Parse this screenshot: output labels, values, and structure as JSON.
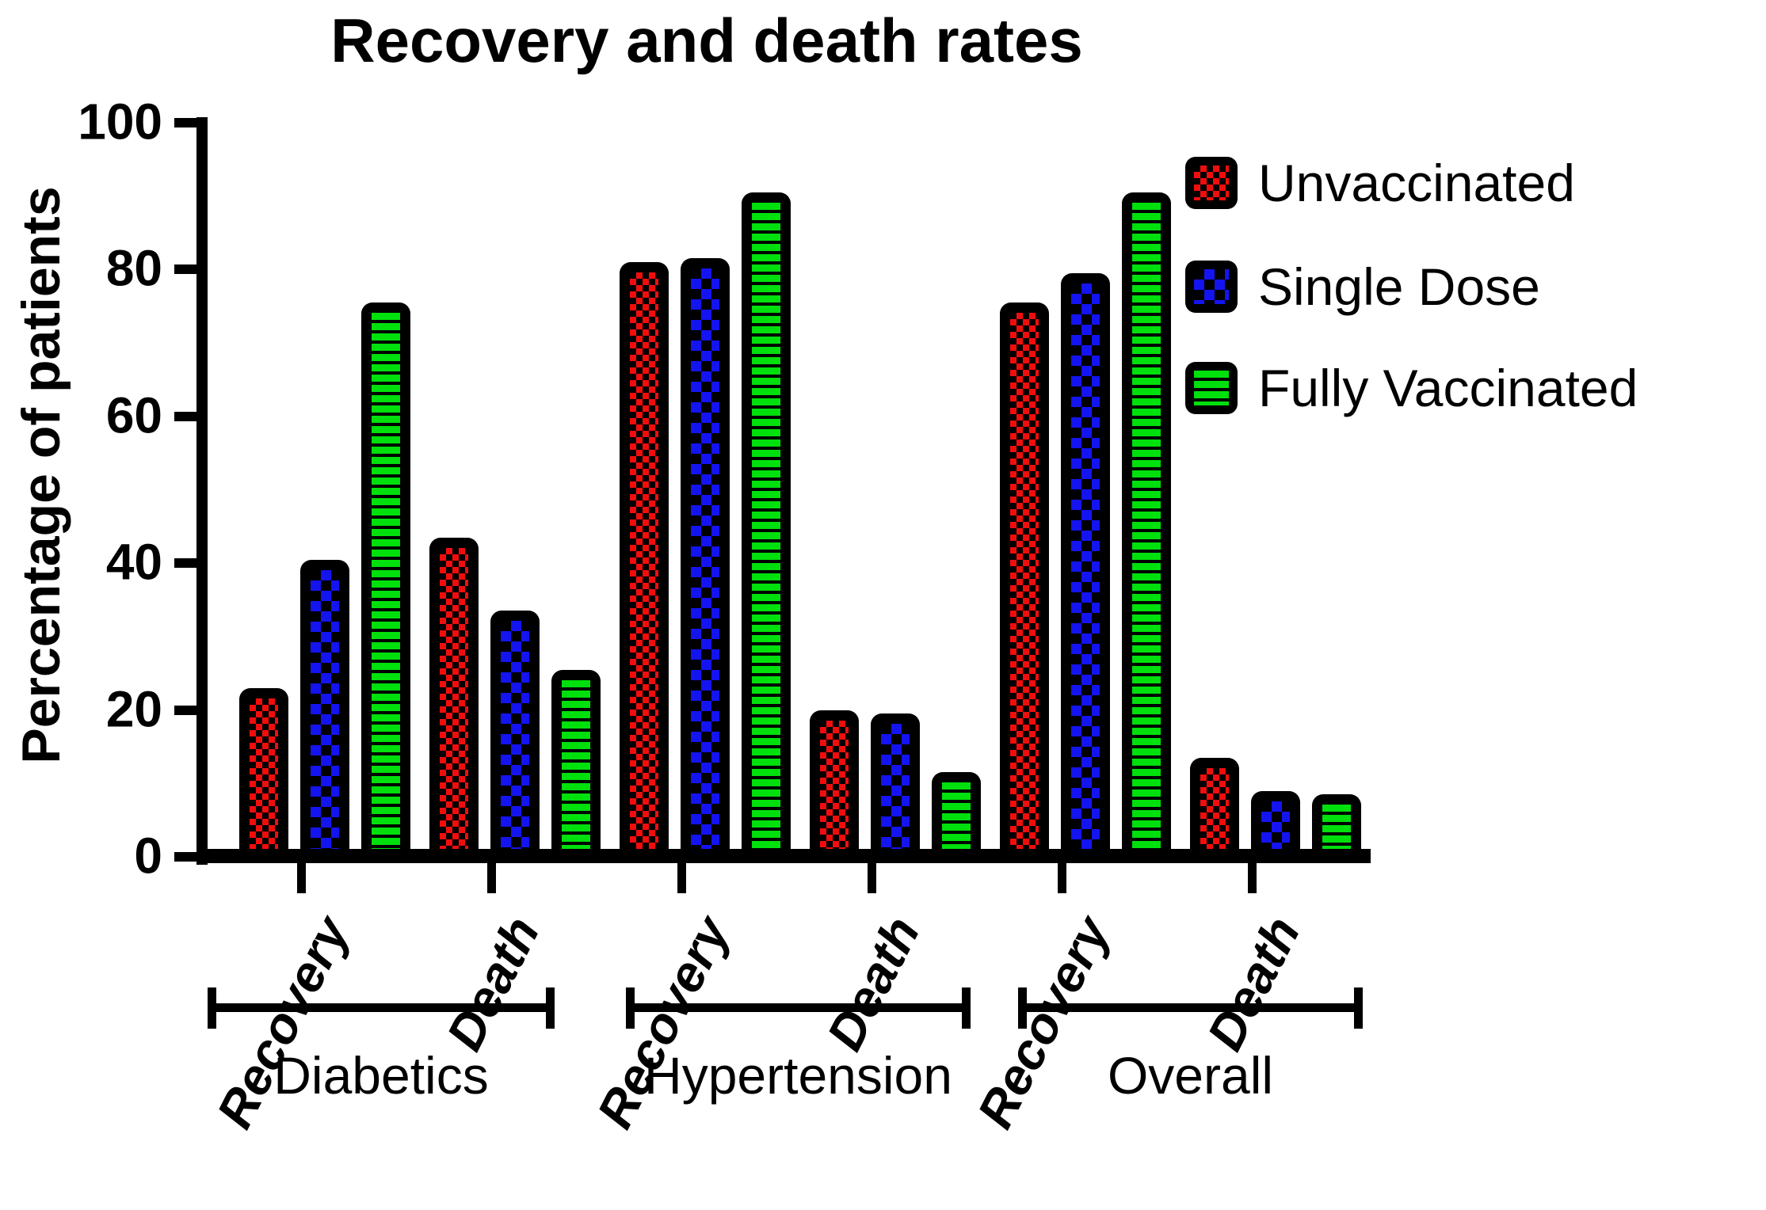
{
  "title": "Recovery and death rates",
  "y_axis": {
    "label": "Percentage of patients",
    "ticks": [
      0,
      20,
      40,
      60,
      80,
      100
    ],
    "max": 100
  },
  "legend": {
    "items": [
      {
        "label": "Unvaccinated",
        "color": "#f20d0d",
        "pattern": "checker-fine"
      },
      {
        "label": "Single Dose",
        "color": "#1414f0",
        "pattern": "checker-coarse"
      },
      {
        "label": "Fully Vaccinated",
        "color": "#00e00c",
        "pattern": "hstripes"
      }
    ]
  },
  "groups": [
    {
      "label": "Diabetics",
      "categories": [
        {
          "label": "Recovery",
          "values": [
            23,
            40.5,
            75.5
          ]
        },
        {
          "label": "Death",
          "values": [
            43.5,
            33.5,
            25.5
          ]
        }
      ]
    },
    {
      "label": "Hypertension",
      "categories": [
        {
          "label": "Recovery",
          "values": [
            81,
            81.5,
            90.5
          ]
        },
        {
          "label": "Death",
          "values": [
            20,
            19.5,
            11.5
          ]
        }
      ]
    },
    {
      "label": "Overall",
      "categories": [
        {
          "label": "Recovery",
          "values": [
            75.5,
            79.5,
            90.5
          ]
        },
        {
          "label": "Death",
          "values": [
            13.5,
            9,
            8.5
          ]
        }
      ]
    }
  ],
  "chart_data": {
    "type": "bar",
    "title": "Recovery and death rates",
    "xlabel": "",
    "ylabel": "Percentage of patients",
    "ylim": [
      0,
      100
    ],
    "yticks": [
      0,
      20,
      40,
      60,
      80,
      100
    ],
    "grid": false,
    "legend_position": "top-right",
    "bar_style": "black outlined bars with color pattern fill (red fine checker, blue coarse checker, green horizontal stripes)",
    "categories": [
      "Diabetics Recovery",
      "Diabetics Death",
      "Hypertension Recovery",
      "Hypertension Death",
      "Overall Recovery",
      "Overall Death"
    ],
    "series": [
      {
        "name": "Unvaccinated",
        "values": [
          23,
          43.5,
          81,
          20,
          75.5,
          13.5
        ]
      },
      {
        "name": "Single Dose",
        "values": [
          40.5,
          33.5,
          81.5,
          19.5,
          79.5,
          9
        ]
      },
      {
        "name": "Fully Vaccinated",
        "values": [
          75.5,
          25.5,
          90.5,
          11.5,
          90.5,
          8.5
        ]
      }
    ]
  }
}
